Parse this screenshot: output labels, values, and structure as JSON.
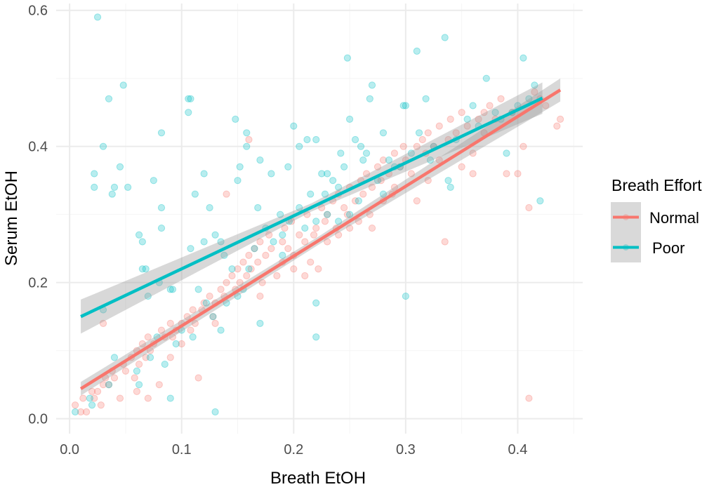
{
  "chart_data": {
    "type": "scatter",
    "title": "",
    "xlabel": "Breath EtOH",
    "ylabel": "Serum EtOH",
    "xlim": [
      -0.012,
      0.458
    ],
    "ylim": [
      -0.022,
      0.61
    ],
    "x_ticks": [
      0.0,
      0.1,
      0.2,
      0.3,
      0.4
    ],
    "x_tick_labels": [
      "0.0",
      "0.1",
      "0.2",
      "0.3",
      "0.4"
    ],
    "y_ticks": [
      0.0,
      0.2,
      0.4,
      0.6
    ],
    "y_tick_labels": [
      "0.0",
      "0.2",
      "0.4",
      "0.6"
    ],
    "grid": true,
    "legend": {
      "title": "Breath Effort",
      "position": "right"
    },
    "series": [
      {
        "name": "Normal",
        "color": "#F8766D",
        "fit": {
          "x": [
            0.01,
            0.438
          ],
          "y": [
            0.044,
            0.483
          ],
          "se_band": [
            [
              0.034,
              0.054
            ],
            [
              0.466,
              0.5
            ]
          ]
        },
        "points": [
          [
            0.005,
            0.02
          ],
          [
            0.01,
            0.01
          ],
          [
            0.012,
            0.03
          ],
          [
            0.015,
            0.01
          ],
          [
            0.02,
            0.04
          ],
          [
            0.022,
            0.03
          ],
          [
            0.025,
            0.04
          ],
          [
            0.028,
            0.02
          ],
          [
            0.03,
            0.05
          ],
          [
            0.032,
            0.06
          ],
          [
            0.035,
            0.05
          ],
          [
            0.038,
            0.07
          ],
          [
            0.04,
            0.06
          ],
          [
            0.045,
            0.03
          ],
          [
            0.048,
            0.08
          ],
          [
            0.05,
            0.07
          ],
          [
            0.055,
            0.09
          ],
          [
            0.058,
            0.06
          ],
          [
            0.06,
            0.1
          ],
          [
            0.062,
            0.08
          ],
          [
            0.065,
            0.11
          ],
          [
            0.068,
            0.09
          ],
          [
            0.07,
            0.12
          ],
          [
            0.072,
            0.1
          ],
          [
            0.075,
            0.11
          ],
          [
            0.08,
            0.05
          ],
          [
            0.082,
            0.13
          ],
          [
            0.085,
            0.12
          ],
          [
            0.09,
            0.14
          ],
          [
            0.092,
            0.12
          ],
          [
            0.095,
            0.13
          ],
          [
            0.1,
            0.14
          ],
          [
            0.105,
            0.15
          ],
          [
            0.108,
            0.13
          ],
          [
            0.11,
            0.16
          ],
          [
            0.112,
            0.14
          ],
          [
            0.115,
            0.06
          ],
          [
            0.118,
            0.16
          ],
          [
            0.12,
            0.17
          ],
          [
            0.125,
            0.18
          ],
          [
            0.128,
            0.15
          ],
          [
            0.13,
            0.17
          ],
          [
            0.135,
            0.19
          ],
          [
            0.138,
            0.18
          ],
          [
            0.14,
            0.2
          ],
          [
            0.145,
            0.21
          ],
          [
            0.148,
            0.19
          ],
          [
            0.15,
            0.22
          ],
          [
            0.152,
            0.2
          ],
          [
            0.155,
            0.23
          ],
          [
            0.158,
            0.21
          ],
          [
            0.16,
            0.24
          ],
          [
            0.162,
            0.22
          ],
          [
            0.165,
            0.25
          ],
          [
            0.168,
            0.23
          ],
          [
            0.17,
            0.26
          ],
          [
            0.172,
            0.2
          ],
          [
            0.175,
            0.24
          ],
          [
            0.178,
            0.27
          ],
          [
            0.18,
            0.25
          ],
          [
            0.185,
            0.21
          ],
          [
            0.19,
            0.26
          ],
          [
            0.192,
            0.28
          ],
          [
            0.195,
            0.25
          ],
          [
            0.198,
            0.29
          ],
          [
            0.2,
            0.24
          ],
          [
            0.205,
            0.27
          ],
          [
            0.21,
            0.26
          ],
          [
            0.212,
            0.3
          ],
          [
            0.215,
            0.23
          ],
          [
            0.218,
            0.27
          ],
          [
            0.22,
            0.28
          ],
          [
            0.222,
            0.22
          ],
          [
            0.225,
            0.31
          ],
          [
            0.228,
            0.29
          ],
          [
            0.23,
            0.3
          ],
          [
            0.235,
            0.32
          ],
          [
            0.238,
            0.28
          ],
          [
            0.24,
            0.33
          ],
          [
            0.245,
            0.31
          ],
          [
            0.248,
            0.3
          ],
          [
            0.25,
            0.34
          ],
          [
            0.255,
            0.32
          ],
          [
            0.258,
            0.29
          ],
          [
            0.26,
            0.35
          ],
          [
            0.262,
            0.33
          ],
          [
            0.265,
            0.36
          ],
          [
            0.268,
            0.3
          ],
          [
            0.27,
            0.34
          ],
          [
            0.275,
            0.37
          ],
          [
            0.278,
            0.35
          ],
          [
            0.28,
            0.38
          ],
          [
            0.285,
            0.36
          ],
          [
            0.288,
            0.33
          ],
          [
            0.29,
            0.39
          ],
          [
            0.295,
            0.37
          ],
          [
            0.298,
            0.4
          ],
          [
            0.3,
            0.38
          ],
          [
            0.305,
            0.36
          ],
          [
            0.31,
            0.4
          ],
          [
            0.315,
            0.41
          ],
          [
            0.318,
            0.39
          ],
          [
            0.32,
            0.42
          ],
          [
            0.325,
            0.4
          ],
          [
            0.33,
            0.43
          ],
          [
            0.335,
            0.26
          ],
          [
            0.338,
            0.41
          ],
          [
            0.34,
            0.44
          ],
          [
            0.345,
            0.42
          ],
          [
            0.35,
            0.45
          ],
          [
            0.355,
            0.43
          ],
          [
            0.36,
            0.36
          ],
          [
            0.365,
            0.44
          ],
          [
            0.37,
            0.45
          ],
          [
            0.375,
            0.46
          ],
          [
            0.38,
            0.44
          ],
          [
            0.385,
            0.47
          ],
          [
            0.39,
            0.36
          ],
          [
            0.395,
            0.45
          ],
          [
            0.4,
            0.36
          ],
          [
            0.405,
            0.4
          ],
          [
            0.41,
            0.03
          ],
          [
            0.41,
            0.31
          ],
          [
            0.415,
            0.48
          ],
          [
            0.42,
            0.47
          ],
          [
            0.425,
            0.46
          ],
          [
            0.435,
            0.43
          ],
          [
            0.438,
            0.44
          ],
          [
            0.03,
            0.14
          ],
          [
            0.06,
            0.04
          ],
          [
            0.1,
            0.11
          ],
          [
            0.14,
            0.33
          ],
          [
            0.16,
            0.41
          ],
          [
            0.2,
            0.22
          ],
          [
            0.24,
            0.27
          ],
          [
            0.28,
            0.32
          ],
          [
            0.32,
            0.35
          ],
          [
            0.36,
            0.39
          ],
          [
            0.07,
            0.03
          ],
          [
            0.09,
            0.09
          ],
          [
            0.13,
            0.14
          ],
          [
            0.17,
            0.18
          ],
          [
            0.21,
            0.21
          ],
          [
            0.25,
            0.28
          ],
          [
            0.29,
            0.34
          ],
          [
            0.33,
            0.38
          ],
          [
            0.37,
            0.42
          ],
          [
            0.19,
            0.23
          ],
          [
            0.23,
            0.26
          ],
          [
            0.27,
            0.28
          ],
          [
            0.31,
            0.32
          ],
          [
            0.35,
            0.37
          ]
        ]
      },
      {
        "name": "Poor",
        "color": "#00BFC4",
        "fit": {
          "x": [
            0.01,
            0.422
          ],
          "y": [
            0.15,
            0.471
          ],
          "se_band": [
            [
              0.125,
              0.175
            ],
            [
              0.448,
              0.494
            ]
          ]
        },
        "points": [
          [
            0.025,
            0.59
          ],
          [
            0.048,
            0.49
          ],
          [
            0.035,
            0.47
          ],
          [
            0.03,
            0.4
          ],
          [
            0.022,
            0.36
          ],
          [
            0.022,
            0.34
          ],
          [
            0.04,
            0.34
          ],
          [
            0.038,
            0.33
          ],
          [
            0.045,
            0.37
          ],
          [
            0.052,
            0.34
          ],
          [
            0.075,
            0.35
          ],
          [
            0.082,
            0.42
          ],
          [
            0.082,
            0.31
          ],
          [
            0.082,
            0.28
          ],
          [
            0.062,
            0.27
          ],
          [
            0.065,
            0.26
          ],
          [
            0.065,
            0.22
          ],
          [
            0.068,
            0.22
          ],
          [
            0.07,
            0.18
          ],
          [
            0.08,
            0.2
          ],
          [
            0.09,
            0.19
          ],
          [
            0.092,
            0.19
          ],
          [
            0.106,
            0.47
          ],
          [
            0.108,
            0.47
          ],
          [
            0.106,
            0.45
          ],
          [
            0.112,
            0.33
          ],
          [
            0.12,
            0.36
          ],
          [
            0.125,
            0.31
          ],
          [
            0.108,
            0.25
          ],
          [
            0.12,
            0.26
          ],
          [
            0.13,
            0.27
          ],
          [
            0.138,
            0.24
          ],
          [
            0.135,
            0.26
          ],
          [
            0.148,
            0.44
          ],
          [
            0.158,
            0.42
          ],
          [
            0.158,
            0.4
          ],
          [
            0.15,
            0.35
          ],
          [
            0.152,
            0.37
          ],
          [
            0.17,
            0.38
          ],
          [
            0.168,
            0.31
          ],
          [
            0.18,
            0.36
          ],
          [
            0.188,
            0.3
          ],
          [
            0.19,
            0.27
          ],
          [
            0.195,
            0.37
          ],
          [
            0.2,
            0.43
          ],
          [
            0.205,
            0.4
          ],
          [
            0.212,
            0.41
          ],
          [
            0.22,
            0.41
          ],
          [
            0.225,
            0.36
          ],
          [
            0.228,
            0.33
          ],
          [
            0.23,
            0.36
          ],
          [
            0.235,
            0.35
          ],
          [
            0.24,
            0.34
          ],
          [
            0.242,
            0.39
          ],
          [
            0.245,
            0.37
          ],
          [
            0.248,
            0.53
          ],
          [
            0.25,
            0.44
          ],
          [
            0.255,
            0.41
          ],
          [
            0.26,
            0.4
          ],
          [
            0.262,
            0.38
          ],
          [
            0.265,
            0.39
          ],
          [
            0.27,
            0.49
          ],
          [
            0.268,
            0.47
          ],
          [
            0.28,
            0.42
          ],
          [
            0.285,
            0.38
          ],
          [
            0.29,
            0.37
          ],
          [
            0.298,
            0.46
          ],
          [
            0.3,
            0.46
          ],
          [
            0.31,
            0.54
          ],
          [
            0.318,
            0.47
          ],
          [
            0.312,
            0.42
          ],
          [
            0.322,
            0.38
          ],
          [
            0.335,
            0.56
          ],
          [
            0.338,
            0.35
          ],
          [
            0.34,
            0.34
          ],
          [
            0.36,
            0.46
          ],
          [
            0.372,
            0.5
          ],
          [
            0.38,
            0.45
          ],
          [
            0.39,
            0.39
          ],
          [
            0.405,
            0.53
          ],
          [
            0.415,
            0.49
          ],
          [
            0.42,
            0.32
          ],
          [
            0.3,
            0.18
          ],
          [
            0.22,
            0.17
          ],
          [
            0.22,
            0.12
          ],
          [
            0.17,
            0.14
          ],
          [
            0.13,
            0.01
          ],
          [
            0.09,
            0.03
          ],
          [
            0.005,
            0.01
          ],
          [
            0.018,
            0.03
          ],
          [
            0.02,
            0.02
          ],
          [
            0.035,
            0.05
          ],
          [
            0.03,
            0.16
          ],
          [
            0.04,
            0.09
          ],
          [
            0.06,
            0.07
          ],
          [
            0.072,
            0.09
          ],
          [
            0.085,
            0.08
          ],
          [
            0.1,
            0.13
          ],
          [
            0.11,
            0.12
          ],
          [
            0.115,
            0.19
          ],
          [
            0.122,
            0.17
          ],
          [
            0.128,
            0.15
          ],
          [
            0.14,
            0.17
          ],
          [
            0.145,
            0.22
          ],
          [
            0.15,
            0.18
          ],
          [
            0.155,
            0.19
          ],
          [
            0.16,
            0.22
          ],
          [
            0.165,
            0.25
          ],
          [
            0.175,
            0.28
          ],
          [
            0.182,
            0.26
          ],
          [
            0.19,
            0.24
          ],
          [
            0.196,
            0.29
          ],
          [
            0.205,
            0.31
          ],
          [
            0.21,
            0.28
          ],
          [
            0.215,
            0.33
          ],
          [
            0.22,
            0.29
          ],
          [
            0.23,
            0.3
          ],
          [
            0.24,
            0.29
          ],
          [
            0.25,
            0.3
          ],
          [
            0.258,
            0.32
          ],
          [
            0.275,
            0.35
          ],
          [
            0.28,
            0.33
          ],
          [
            0.295,
            0.37
          ],
          [
            0.305,
            0.39
          ],
          [
            0.325,
            0.4
          ],
          [
            0.345,
            0.41
          ],
          [
            0.355,
            0.44
          ],
          [
            0.365,
            0.43
          ],
          [
            0.385,
            0.44
          ],
          [
            0.395,
            0.45
          ],
          [
            0.4,
            0.46
          ],
          [
            0.41,
            0.47
          ],
          [
            0.062,
            0.05
          ],
          [
            0.078,
            0.12
          ],
          [
            0.095,
            0.11
          ],
          [
            0.135,
            0.13
          ]
        ]
      }
    ]
  }
}
